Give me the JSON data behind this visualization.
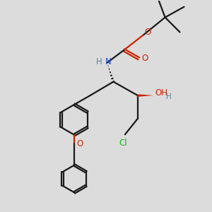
{
  "bg_color": "#dcdcdc",
  "bond_color": "#1a1a1a",
  "N_color": "#2255cc",
  "O_color": "#cc2200",
  "Cl_color": "#22aa22",
  "H_color": "#558899",
  "figsize": [
    3.0,
    3.0
  ],
  "dpi": 100,
  "xlim": [
    0,
    10
  ],
  "ylim": [
    0,
    10
  ],
  "lw": 1.6,
  "fs": 8.5
}
